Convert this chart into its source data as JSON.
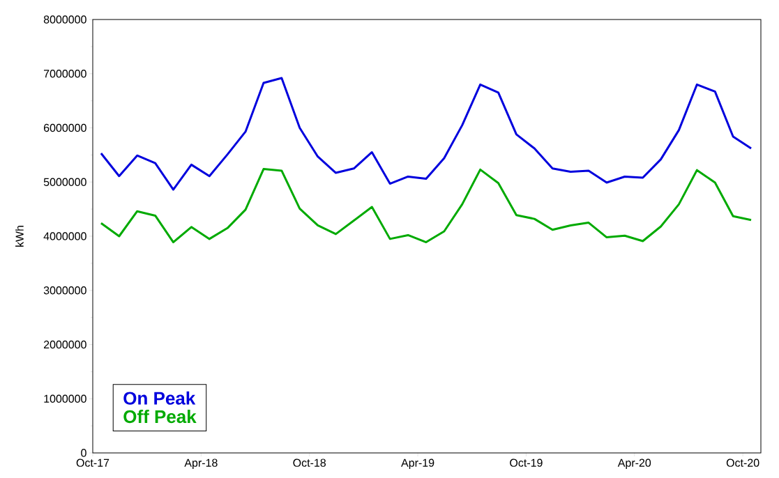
{
  "chart_data": {
    "type": "line",
    "ylabel": "kWh",
    "x": [
      "2017-10-15",
      "2017-11-15",
      "2017-12-15",
      "2018-01-15",
      "2018-02-15",
      "2018-03-15",
      "2018-04-15",
      "2018-05-15",
      "2018-06-15",
      "2018-07-15",
      "2018-08-15",
      "2018-09-15",
      "2018-10-15",
      "2018-11-15",
      "2018-12-15",
      "2019-01-15",
      "2019-02-15",
      "2019-03-15",
      "2019-04-15",
      "2019-05-15",
      "2019-06-15",
      "2019-07-15",
      "2019-08-15",
      "2019-09-15",
      "2019-10-15",
      "2019-11-15",
      "2019-12-15",
      "2020-01-15",
      "2020-02-15",
      "2020-03-15",
      "2020-04-15",
      "2020-05-15",
      "2020-06-15",
      "2020-07-15",
      "2020-08-15",
      "2020-09-15",
      "2020-10-15"
    ],
    "series": [
      {
        "name": "On Peak",
        "color": "#0000dd",
        "values": [
          5530000,
          5110000,
          5490000,
          5350000,
          4860000,
          5320000,
          5110000,
          5510000,
          5930000,
          6830000,
          6920000,
          6000000,
          5470000,
          5170000,
          5250000,
          5550000,
          4970000,
          5100000,
          5060000,
          5440000,
          6050000,
          6800000,
          6650000,
          5880000,
          5620000,
          5250000,
          5190000,
          5210000,
          4990000,
          5100000,
          5080000,
          5420000,
          5960000,
          6800000,
          6670000,
          5840000,
          5620000
        ]
      },
      {
        "name": "Off Peak",
        "color": "#00aa00",
        "values": [
          4240000,
          4000000,
          4460000,
          4380000,
          3890000,
          4170000,
          3950000,
          4150000,
          4490000,
          5240000,
          5210000,
          4510000,
          4200000,
          4040000,
          4290000,
          4540000,
          3950000,
          4020000,
          3890000,
          4090000,
          4590000,
          5230000,
          4980000,
          4390000,
          4320000,
          4120000,
          4200000,
          4250000,
          3980000,
          4010000,
          3910000,
          4180000,
          4590000,
          5220000,
          4990000,
          4370000,
          4300000
        ]
      }
    ],
    "xlim": [
      "2017-10-01",
      "2020-11-01"
    ],
    "xticks": [
      {
        "value": "2017-10-01",
        "label": "Oct-17"
      },
      {
        "value": "2018-04-01",
        "label": "Apr-18"
      },
      {
        "value": "2018-10-01",
        "label": "Oct-18"
      },
      {
        "value": "2019-04-01",
        "label": "Apr-19"
      },
      {
        "value": "2019-10-01",
        "label": "Oct-19"
      },
      {
        "value": "2020-04-01",
        "label": "Apr-20"
      },
      {
        "value": "2020-10-01",
        "label": "Oct-20"
      }
    ],
    "ylim": [
      0,
      8000000
    ],
    "yticks": [
      0,
      1000000,
      2000000,
      3000000,
      4000000,
      5000000,
      6000000,
      7000000,
      8000000
    ],
    "grid": false,
    "legend": "bottom left",
    "marker": "none",
    "line_style": "solid"
  }
}
